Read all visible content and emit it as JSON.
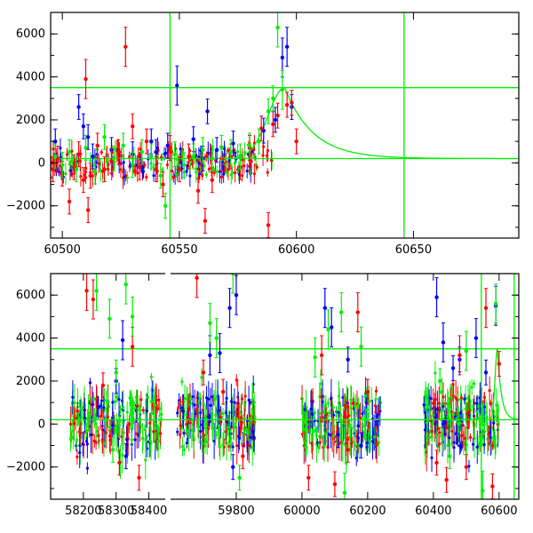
{
  "chart_data": [
    {
      "type": "scatter",
      "title": "",
      "xlabel": "",
      "ylabel": "",
      "xlim": [
        60495,
        60695
      ],
      "ylim": [
        -3500,
        7000
      ],
      "x_ticks": [
        60500,
        60550,
        60600,
        60650
      ],
      "y_ticks": [
        -2000,
        0,
        2000,
        4000,
        6000
      ],
      "grid": false,
      "legend": "none",
      "series": [
        {
          "color": "#0000ff",
          "points": [
            [
              60497,
              1000
            ],
            [
              60507,
              2600
            ],
            [
              60509,
              1700
            ],
            [
              60511,
              1200
            ],
            [
              60513,
              300
            ],
            [
              60521,
              600
            ],
            [
              60530,
              400
            ],
            [
              60538,
              1000
            ],
            [
              60540,
              500
            ],
            [
              60545,
              800
            ],
            [
              60549,
              3600
            ],
            [
              60556,
              1100
            ],
            [
              60560,
              200
            ],
            [
              60562,
              2400
            ],
            [
              60566,
              600
            ],
            [
              60573,
              900
            ],
            [
              60580,
              700
            ],
            [
              60586,
              1500
            ],
            [
              60591,
              2000
            ],
            [
              60594,
              4900
            ],
            [
              60596,
              5400
            ],
            [
              60598,
              2600
            ]
          ]
        },
        {
          "color": "#ff0000",
          "points": [
            [
              60496,
              -300
            ],
            [
              60498,
              200
            ],
            [
              60500,
              -500
            ],
            [
              60503,
              -1800
            ],
            [
              60505,
              -200
            ],
            [
              60507,
              400
            ],
            [
              60509,
              -800
            ],
            [
              60510,
              3900
            ],
            [
              60511,
              -2200
            ],
            [
              60512,
              -600
            ],
            [
              60515,
              800
            ],
            [
              60518,
              -300
            ],
            [
              60521,
              100
            ],
            [
              60524,
              500
            ],
            [
              60527,
              5400
            ],
            [
              60530,
              1700
            ],
            [
              60533,
              -200
            ],
            [
              60536,
              1000
            ],
            [
              60540,
              -300
            ],
            [
              60543,
              -1000
            ],
            [
              60546,
              700
            ],
            [
              60550,
              -300
            ],
            [
              60554,
              300
            ],
            [
              60558,
              -1300
            ],
            [
              60561,
              -2700
            ],
            [
              60564,
              -800
            ],
            [
              60568,
              200
            ],
            [
              60572,
              300
            ],
            [
              60576,
              -200
            ],
            [
              60580,
              700
            ],
            [
              60585,
              1600
            ],
            [
              60588,
              -2900
            ],
            [
              60590,
              1800
            ],
            [
              60592,
              2200
            ],
            [
              60596,
              2700
            ],
            [
              60598,
              2800
            ],
            [
              60600,
              1000
            ]
          ]
        },
        {
          "color": "#00ee00",
          "points": [
            [
              60497,
              300
            ],
            [
              60500,
              -100
            ],
            [
              60503,
              500
            ],
            [
              60506,
              -300
            ],
            [
              60510,
              700
            ],
            [
              60514,
              -400
            ],
            [
              60518,
              1200
            ],
            [
              60522,
              200
            ],
            [
              60526,
              800
            ],
            [
              60530,
              -100
            ],
            [
              60534,
              500
            ],
            [
              60538,
              300
            ],
            [
              60542,
              -600
            ],
            [
              60544,
              -2000
            ],
            [
              60548,
              400
            ],
            [
              60552,
              -100
            ],
            [
              60556,
              300
            ],
            [
              60560,
              600
            ],
            [
              60564,
              200
            ],
            [
              60568,
              700
            ],
            [
              60572,
              500
            ],
            [
              60576,
              300
            ],
            [
              60580,
              800
            ],
            [
              60584,
              1000
            ],
            [
              60588,
              2400
            ],
            [
              60590,
              3000
            ],
            [
              60592,
              6300
            ],
            [
              60594,
              3400
            ]
          ]
        }
      ],
      "lines": [
        {
          "type": "horizontal",
          "y": 3500,
          "color": "#00ee00"
        },
        {
          "type": "horizontal",
          "y": 200,
          "color": "#00ee00"
        },
        {
          "type": "vertical",
          "x": 60546,
          "color": "#00ee00"
        },
        {
          "type": "vertical",
          "x": 60646,
          "color": "#00ee00"
        }
      ],
      "model_curve": {
        "color": "#00ee00",
        "peak_x": 60595,
        "peak_y": 3500,
        "baseline": 200
      }
    },
    {
      "type": "scatter",
      "title": "",
      "xlabel": "",
      "ylabel": "",
      "xlim": [
        58100,
        60660
      ],
      "ylim": [
        -3500,
        7000
      ],
      "x_ticks": [
        58200,
        58300,
        58400,
        59800,
        60000,
        60200,
        60400,
        60600
      ],
      "y_ticks": [
        -2000,
        0,
        2000,
        4000,
        6000
      ],
      "grid": false,
      "legend": "none",
      "series": [
        {
          "color": "#0000ff",
          "points": [
            [
              58320,
              3900
            ],
            [
              58330,
              -1500
            ],
            [
              58300,
              2000
            ],
            [
              59720,
              3200
            ],
            [
              59750,
              3300
            ],
            [
              59780,
              5400
            ],
            [
              59790,
              -2000
            ],
            [
              59800,
              6000
            ],
            [
              60070,
              5400
            ],
            [
              60090,
              4500
            ],
            [
              60110,
              -500
            ],
            [
              60140,
              3000
            ],
            [
              60180,
              -1000
            ],
            [
              60410,
              5900
            ],
            [
              60430,
              3800
            ],
            [
              60460,
              2600
            ],
            [
              60480,
              3000
            ],
            [
              60530,
              4000
            ],
            [
              60560,
              2400
            ],
            [
              60590,
              5500
            ]
          ]
        },
        {
          "color": "#ff0000",
          "points": [
            [
              58210,
              6200
            ],
            [
              58230,
              5800
            ],
            [
              58260,
              1800
            ],
            [
              58310,
              -1800
            ],
            [
              58350,
              3600
            ],
            [
              58370,
              -2500
            ],
            [
              59680,
              6800
            ],
            [
              59700,
              2400
            ],
            [
              59760,
              1500
            ],
            [
              59820,
              -1500
            ],
            [
              60020,
              -2500
            ],
            [
              60060,
              3200
            ],
            [
              60100,
              -2800
            ],
            [
              60140,
              -1200
            ],
            [
              60170,
              5200
            ],
            [
              60200,
              1500
            ],
            [
              60410,
              -1800
            ],
            [
              60440,
              -2600
            ],
            [
              60480,
              3200
            ],
            [
              60500,
              -2000
            ],
            [
              60560,
              5400
            ],
            [
              60580,
              -2900
            ],
            [
              60600,
              2800
            ]
          ]
        },
        {
          "color": "#00ee00",
          "points": [
            [
              58240,
              6200
            ],
            [
              58280,
              4900
            ],
            [
              58300,
              2400
            ],
            [
              58330,
              6500
            ],
            [
              58350,
              5000
            ],
            [
              58290,
              -1200
            ],
            [
              59720,
              4700
            ],
            [
              59740,
              4000
            ],
            [
              59790,
              7000
            ],
            [
              59810,
              -2500
            ],
            [
              60040,
              3100
            ],
            [
              60080,
              4400
            ],
            [
              60120,
              5200
            ],
            [
              60130,
              -3200
            ],
            [
              60180,
              3600
            ],
            [
              60420,
              2000
            ],
            [
              60450,
              -1500
            ],
            [
              60500,
              3400
            ],
            [
              60550,
              -3100
            ],
            [
              60590,
              5600
            ]
          ]
        }
      ],
      "lines": [
        {
          "type": "horizontal",
          "y": 3500,
          "color": "#00ee00"
        },
        {
          "type": "horizontal",
          "y": 200,
          "color": "#00ee00"
        },
        {
          "type": "vertical",
          "x": 60546,
          "color": "#00ee00"
        },
        {
          "type": "vertical",
          "x": 60646,
          "color": "#00ee00"
        }
      ],
      "model_curve": {
        "color": "#00ee00",
        "peak_x": 60595,
        "peak_y": 3500,
        "baseline": 200
      },
      "noise_bands": [
        {
          "x0": 58160,
          "x1": 58440,
          "y0": -1000,
          "y1": 1300
        },
        {
          "x0": 59620,
          "x1": 59860,
          "y0": -1100,
          "y1": 1300
        },
        {
          "x0": 60000,
          "x1": 60240,
          "y0": -1100,
          "y1": 1300
        },
        {
          "x0": 60370,
          "x1": 60600,
          "y0": -1100,
          "y1": 1300
        }
      ]
    }
  ]
}
